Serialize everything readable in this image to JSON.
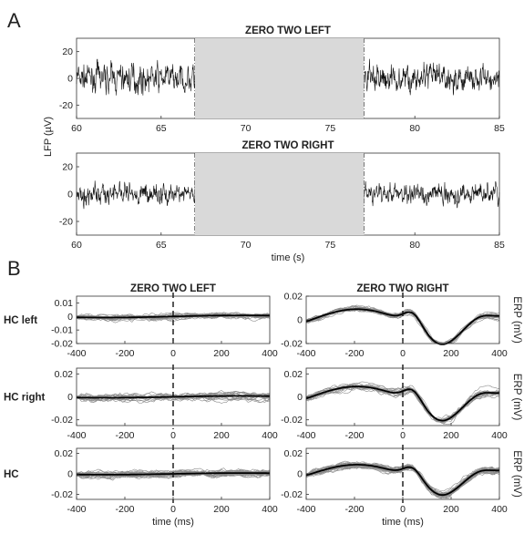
{
  "panel_labels": {
    "a": "A",
    "b": "B"
  },
  "colors": {
    "trace": "#111111",
    "highlight": "#d9d9d9",
    "thin": "#8c8c8c",
    "mean": "#000000"
  },
  "chart_data": [
    {
      "id": "A1",
      "type": "line",
      "title": "ZERO TWO LEFT",
      "xlim": [
        60,
        85
      ],
      "ylim": [
        -30,
        30
      ],
      "xticks": [
        60,
        65,
        70,
        75,
        80,
        85
      ],
      "yticks": [
        20,
        0,
        -20
      ],
      "shaded_interval": [
        67,
        77
      ],
      "vlines": [
        67,
        77
      ],
      "series": [
        {
          "amp_baseline": 8,
          "amp_stim": 13,
          "ticks": "60,65,70,75,80,85"
        }
      ]
    },
    {
      "id": "A2",
      "type": "line",
      "title": "ZERO TWO RIGHT",
      "ylabel": "LFP (µV)",
      "xlabel": "time (s)",
      "xlim": [
        60,
        85
      ],
      "ylim": [
        -30,
        30
      ],
      "xticks": [
        60,
        65,
        70,
        75,
        80,
        85
      ],
      "yticks": [
        20,
        0,
        -20
      ],
      "shaded_interval": [
        67,
        77
      ],
      "vlines": [
        67,
        77
      ],
      "series": [
        {
          "amp_baseline": 6,
          "amp_stim": 18
        }
      ]
    },
    {
      "id": "B11",
      "type": "line",
      "title": "ZERO TWO LEFT",
      "row_label": "HC left",
      "xlim": [
        -400,
        400
      ],
      "ylim": [
        -0.02,
        0.015
      ],
      "yticks": [
        0.01,
        0,
        -0.01,
        -0.02
      ],
      "ytick_labels": [
        "0.01",
        "0",
        "-0.01",
        "-0.02"
      ],
      "xticks": [
        -400,
        -200,
        0,
        200,
        400
      ],
      "vline": 0,
      "mean_profile": "flat",
      "n_trials": 18
    },
    {
      "id": "B12",
      "type": "line",
      "title": "ZERO TWO RIGHT",
      "ylabel": "ERP (mV)",
      "xlim": [
        -400,
        400
      ],
      "ylim": [
        -0.02,
        0.02
      ],
      "yticks": [
        0.02,
        0,
        -0.02
      ],
      "ytick_labels": [
        "0.02",
        "0",
        "-0.02"
      ],
      "xticks": [
        -400,
        -200,
        0,
        200,
        400
      ],
      "vline": 0,
      "mean_profile": "wave",
      "n_trials": 18
    },
    {
      "id": "B21",
      "type": "line",
      "row_label": "HC right",
      "xlim": [
        -400,
        400
      ],
      "ylim": [
        -0.025,
        0.025
      ],
      "yticks": [
        0.02,
        0,
        -0.02
      ],
      "ytick_labels": [
        "0.02",
        "0",
        "-0.02"
      ],
      "xticks": [
        -400,
        -200,
        0,
        200,
        400
      ],
      "vline": 0,
      "mean_profile": "flat",
      "n_trials": 18
    },
    {
      "id": "B22",
      "type": "line",
      "ylabel": "ERP (mV)",
      "xlim": [
        -400,
        400
      ],
      "ylim": [
        -0.025,
        0.025
      ],
      "yticks": [
        0.02,
        0,
        -0.02
      ],
      "ytick_labels": [
        "0.02",
        "0",
        "-0.02"
      ],
      "xticks": [
        -400,
        -200,
        0,
        200,
        400
      ],
      "vline": 0,
      "mean_profile": "wave",
      "n_trials": 18
    },
    {
      "id": "B31",
      "type": "line",
      "row_label": "HC",
      "xlabel": "time (ms)",
      "xlim": [
        -400,
        400
      ],
      "ylim": [
        -0.025,
        0.025
      ],
      "yticks": [
        0.02,
        0,
        -0.02
      ],
      "ytick_labels": [
        "0.02",
        "0",
        "-0.02"
      ],
      "xticks": [
        -400,
        -200,
        0,
        200,
        400
      ],
      "vline": 0,
      "mean_profile": "flat",
      "n_trials": 30
    },
    {
      "id": "B32",
      "type": "line",
      "ylabel": "ERP (mV)",
      "xlabel": "time (ms)",
      "xlim": [
        -400,
        400
      ],
      "ylim": [
        -0.025,
        0.025
      ],
      "yticks": [
        0.02,
        0,
        -0.02
      ],
      "ytick_labels": [
        "0.02",
        "0",
        "-0.02"
      ],
      "xticks": [
        -400,
        -200,
        0,
        200,
        400
      ],
      "vline": 0,
      "mean_profile": "wave",
      "n_trials": 30
    }
  ]
}
